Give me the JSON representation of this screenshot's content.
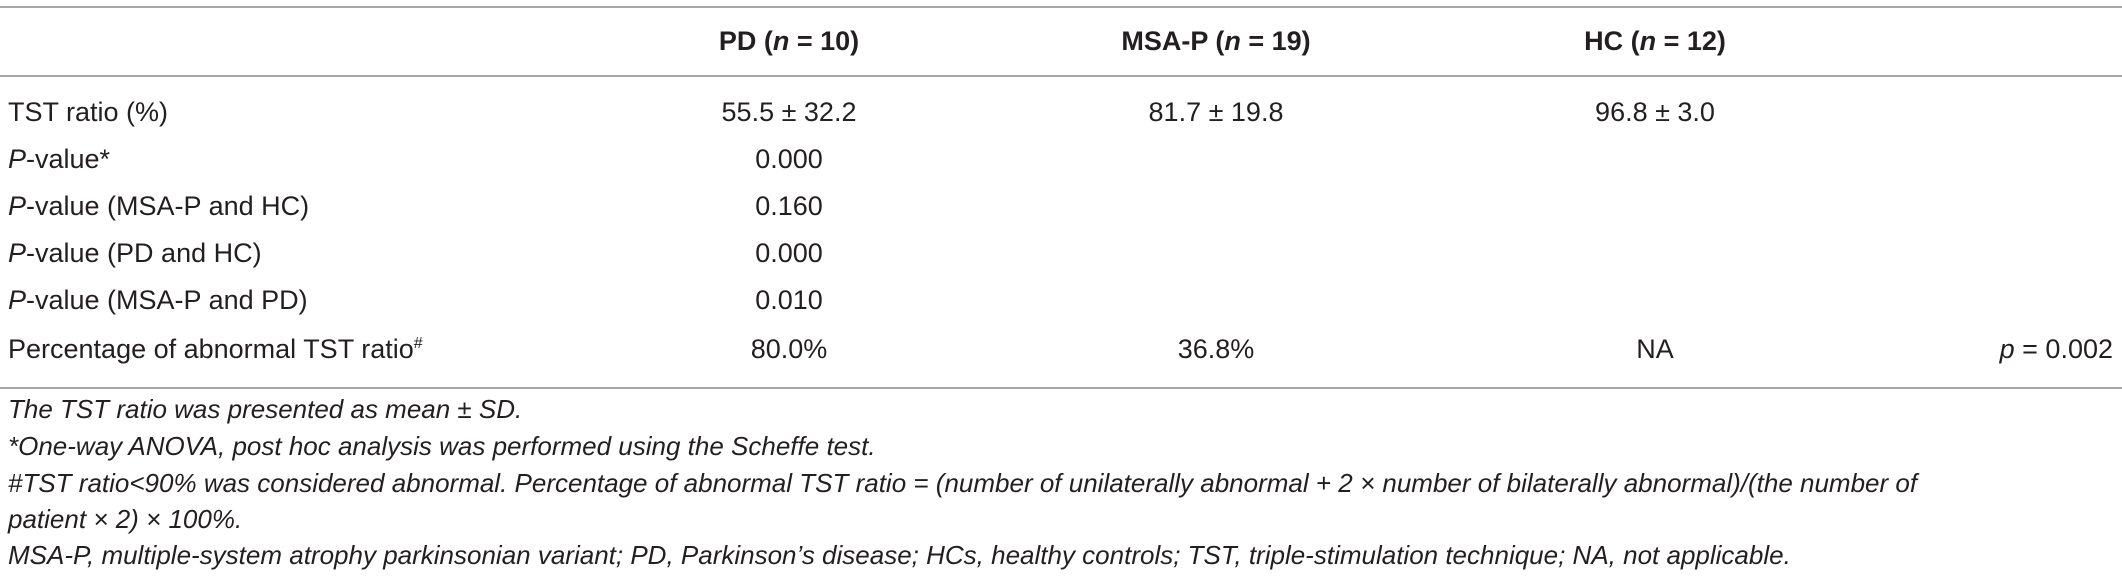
{
  "table": {
    "headers": [
      {
        "label": "",
        "extra": ""
      },
      {
        "label": "PD (",
        "italic": "n",
        "rest": " = 10)"
      },
      {
        "label": "MSA-P (",
        "italic": "n",
        "rest": " = 19)"
      },
      {
        "label": "HC (",
        "italic": "n",
        "rest": " = 12)"
      },
      {
        "label": "",
        "extra": ""
      }
    ],
    "rows": [
      {
        "label_italic": "",
        "label": "TST ratio (%)",
        "sup": "",
        "pd": "55.5 ± 32.2",
        "msap": "81.7 ± 19.8",
        "hc": "96.8 ± 3.0",
        "p_italic": "",
        "p": ""
      },
      {
        "label_italic": "P",
        "label": "-value*",
        "sup": "",
        "pd": "0.000",
        "msap": "",
        "hc": "",
        "p_italic": "",
        "p": ""
      },
      {
        "label_italic": "P",
        "label": "-value (MSA-P and HC)",
        "sup": "",
        "pd": "0.160",
        "msap": "",
        "hc": "",
        "p_italic": "",
        "p": ""
      },
      {
        "label_italic": "P",
        "label": "-value (PD and HC)",
        "sup": "",
        "pd": "0.000",
        "msap": "",
        "hc": "",
        "p_italic": "",
        "p": ""
      },
      {
        "label_italic": "P",
        "label": "-value (MSA-P and PD)",
        "sup": "",
        "pd": "0.010",
        "msap": "",
        "hc": "",
        "p_italic": "",
        "p": ""
      },
      {
        "label_italic": "",
        "label": "Percentage of abnormal TST ratio",
        "sup": "#",
        "pd": "80.0%",
        "msap": "36.8%",
        "hc": "NA",
        "p_italic": "p",
        "p": " = 0.002"
      }
    ]
  },
  "footnotes": [
    "The TST ratio was presented as mean ± SD.",
    "*One-way ANOVA, post hoc analysis was performed using the Scheffe test.",
    "#TST ratio<90% was considered abnormal. Percentage of abnormal TST ratio = (number of unilaterally abnormal + 2 × number of bilaterally abnormal)/(the number of",
    "patient × 2) × 100%.",
    "MSA-P, multiple-system atrophy parkinsonian variant; PD, Parkinson’s disease; HCs, healthy controls; TST, triple-stimulation technique; NA, not applicable."
  ]
}
